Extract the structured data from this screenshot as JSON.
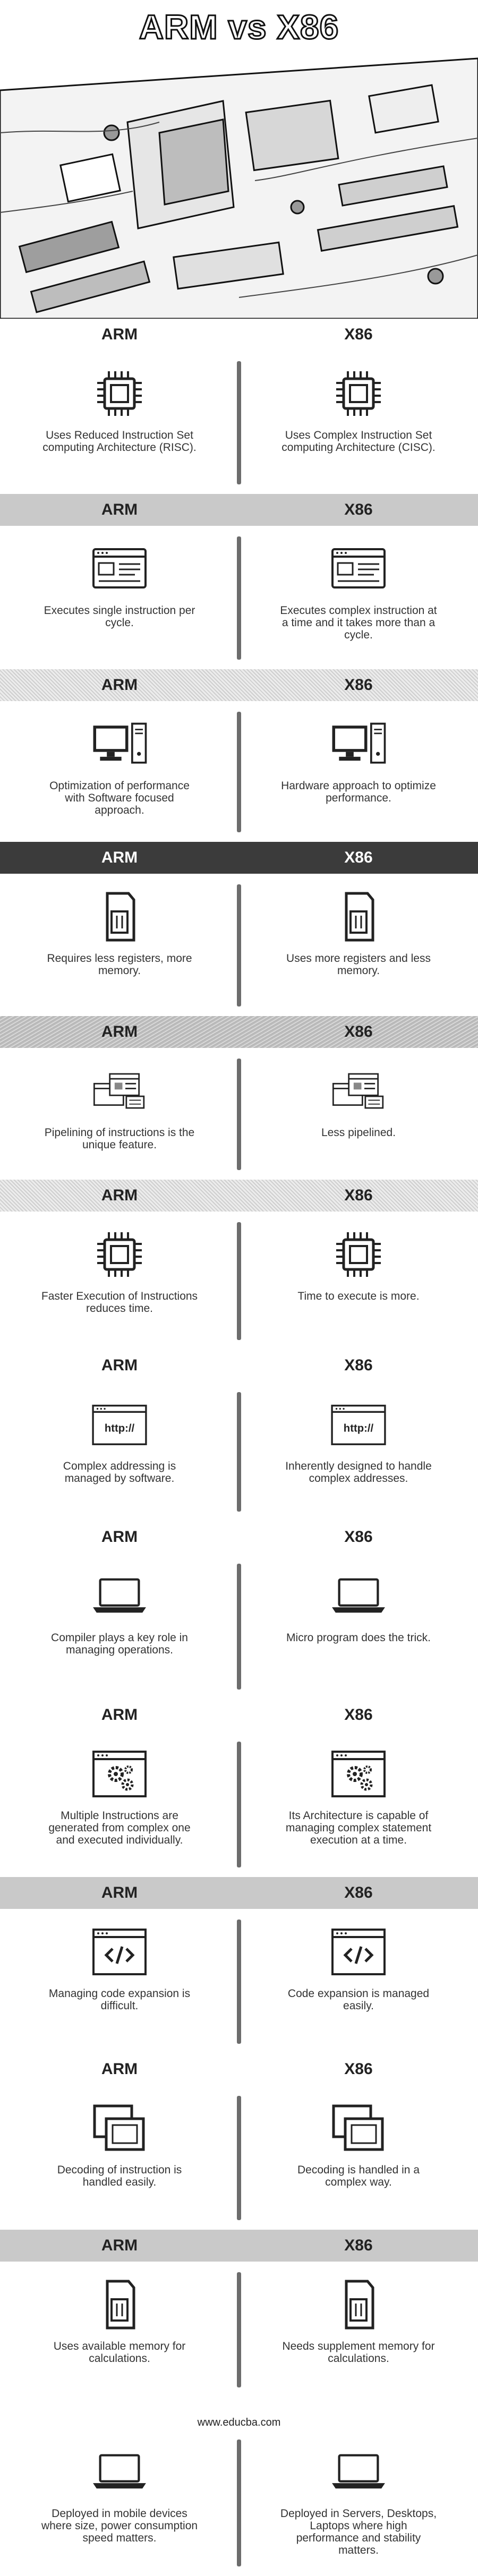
{
  "hero": {
    "title": "ARM vs X86"
  },
  "headers": {
    "left": "ARM",
    "right": "X86"
  },
  "rows": [
    {
      "icon": "cpu-chip-icon",
      "left": "Uses Reduced Instruction Set computing Architecture (RISC).",
      "right": "Uses Complex Instruction Set computing Architecture (CISC)."
    },
    {
      "icon": "browser-window-icon",
      "left": "Executes single instruction per cycle.",
      "right": "Executes complex instruction at a time and it takes more than a cycle."
    },
    {
      "icon": "desktop-computer-icon",
      "left": "Optimization of performance with Software focused approach.",
      "right": "Hardware approach to optimize performance."
    },
    {
      "icon": "memory-card-icon",
      "left": "Requires less registers, more memory.",
      "right": "Uses more registers and less memory."
    },
    {
      "icon": "pipeline-windows-icon",
      "left": "Pipelining of instructions is the unique feature.",
      "right": "Less pipelined."
    },
    {
      "icon": "cpu-chip-icon",
      "left": "Faster Execution of Instructions reduces time.",
      "right": "Time to execute is more."
    },
    {
      "icon": "http-window-icon",
      "left": "Complex addressing is managed by software.",
      "right": "Inherently designed to handle complex addresses."
    },
    {
      "icon": "laptop-icon",
      "left": "Compiler plays a key role in managing operations.",
      "right": "Micro program does the trick."
    },
    {
      "icon": "settings-window-icon",
      "left": "Multiple Instructions are generated from complex one and executed individually.",
      "right": "Its Architecture is capable of managing complex statement execution at a time."
    },
    {
      "icon": "code-window-icon",
      "left": "Managing code expansion is difficult.",
      "right": "Code expansion is managed easily."
    },
    {
      "icon": "stacked-windows-icon",
      "left": "Decoding of instruction is handled easily.",
      "right": "Decoding is handled in a complex way."
    },
    {
      "icon": "memory-card-icon",
      "left": "Uses available memory for calculations.",
      "right": "Needs supplement memory for calculations."
    },
    {
      "icon": "laptop-icon",
      "left": "Deployed in mobile devices where size, power consumption speed matters.",
      "right": "Deployed in Servers, Desktops, Laptops where high performance and stability matters."
    }
  ],
  "footer": {
    "text": "www.educba.com"
  }
}
